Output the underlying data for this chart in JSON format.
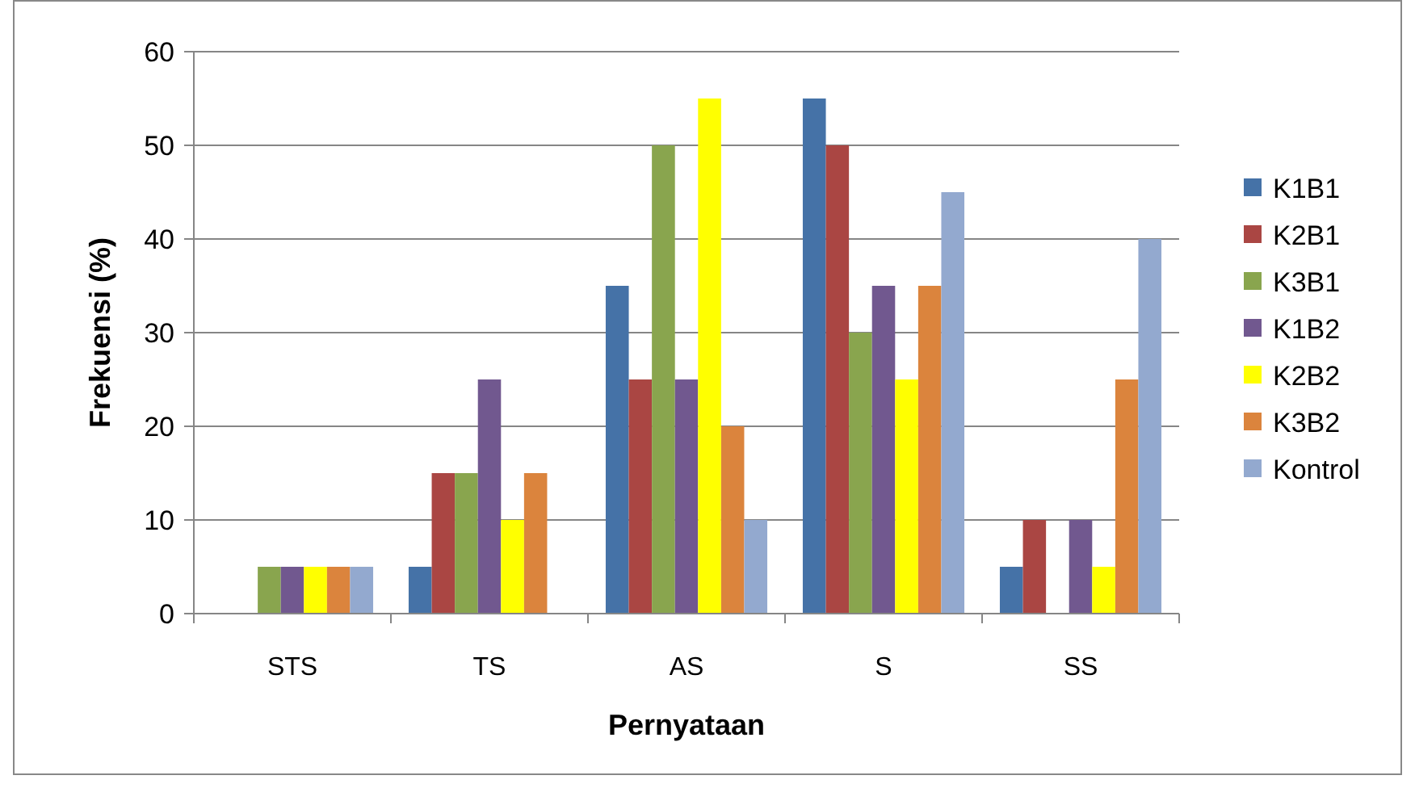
{
  "chart_data": {
    "type": "bar",
    "xlabel": "Pernyataan",
    "ylabel": "Frekuensi (%)",
    "categories": [
      "STS",
      "TS",
      "AS",
      "S",
      "SS"
    ],
    "series": [
      {
        "name": "K1B1",
        "color": "#4572a7",
        "values": [
          0,
          5,
          35,
          55,
          5
        ]
      },
      {
        "name": "K2B1",
        "color": "#aa4643",
        "values": [
          0,
          15,
          25,
          50,
          10
        ]
      },
      {
        "name": "K3B1",
        "color": "#89a54e",
        "values": [
          5,
          15,
          50,
          30,
          0
        ]
      },
      {
        "name": "K1B2",
        "color": "#71588f",
        "values": [
          5,
          25,
          25,
          35,
          10
        ]
      },
      {
        "name": "K2B2",
        "color": "#ffff00",
        "values": [
          5,
          10,
          55,
          25,
          5
        ]
      },
      {
        "name": "K3B2",
        "color": "#db843d",
        "values": [
          5,
          15,
          20,
          35,
          25
        ]
      },
      {
        "name": "Kontrol",
        "color": "#93a9cf",
        "values": [
          5,
          0,
          10,
          45,
          40
        ]
      }
    ],
    "ylim": [
      0,
      60
    ],
    "yticks": [
      0,
      10,
      20,
      30,
      40,
      50,
      60
    ],
    "grid": "y",
    "legend": "right"
  }
}
